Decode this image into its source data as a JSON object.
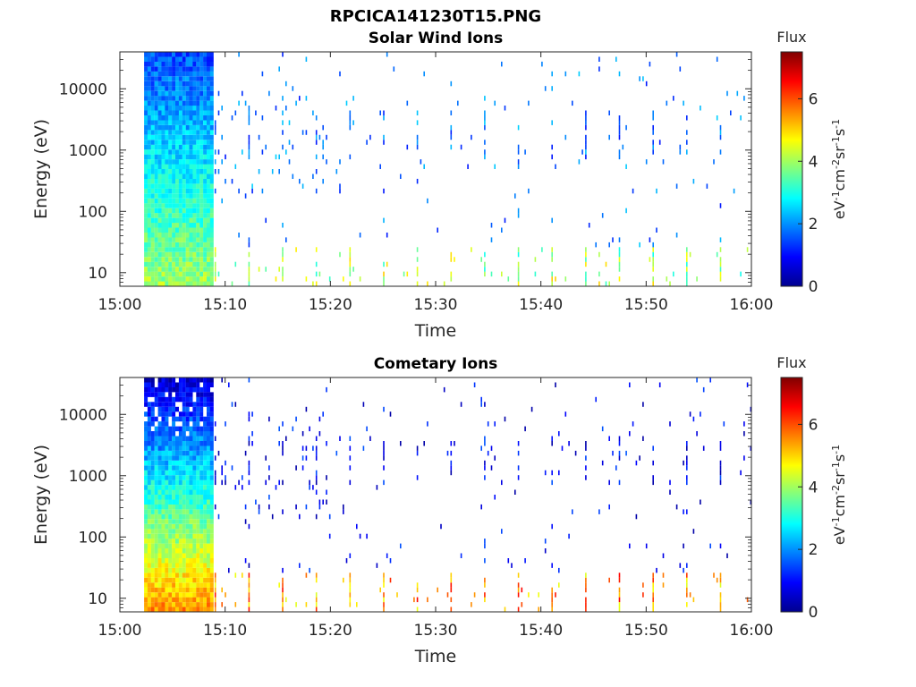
{
  "chart_data": {
    "title": "RPCICA141230T15.PNG",
    "colormap": "jet",
    "panels": [
      {
        "title": "Solar Wind Ions",
        "type": "heatmap",
        "xlabel": "Time",
        "ylabel": "Energy (eV)",
        "x_ticks": [
          "15:00",
          "15:10",
          "15:20",
          "15:30",
          "15:40",
          "15:50",
          "16:00"
        ],
        "x_range_minutes": [
          0,
          60
        ],
        "y_scale": "log",
        "y_ticks": [
          "10",
          "100",
          "1000",
          "10000"
        ],
        "y_range": [
          6,
          40000
        ],
        "colorbar": {
          "title": "Flux",
          "label": "eV-1cm-2sr-1s-1",
          "range": [
            0,
            7.5
          ],
          "ticks": [
            "0",
            "2",
            "4",
            "6"
          ]
        },
        "data_coverage_minutes": [
          2.3,
          60
        ],
        "dense_block_minutes": [
          2.3,
          8.8
        ],
        "typical_flux_low_energy": 4,
        "typical_flux_high_energy": 1.5
      },
      {
        "title": "Cometary Ions",
        "type": "heatmap",
        "xlabel": "Time",
        "ylabel": "Energy (eV)",
        "x_ticks": [
          "15:00",
          "15:10",
          "15:20",
          "15:30",
          "15:40",
          "15:50",
          "16:00"
        ],
        "x_range_minutes": [
          0,
          60
        ],
        "y_scale": "log",
        "y_ticks": [
          "10",
          "100",
          "1000",
          "10000"
        ],
        "y_range": [
          6,
          40000
        ],
        "colorbar": {
          "title": "Flux",
          "label": "eV-1cm-2sr-1s-1",
          "range": [
            0,
            7.5
          ],
          "ticks": [
            "0",
            "2",
            "4",
            "6"
          ]
        },
        "data_coverage_minutes": [
          2.3,
          60
        ],
        "dense_block_minutes": [
          2.3,
          8.8
        ],
        "typical_flux_low_energy": 5.5,
        "typical_flux_high_energy": 0.6
      }
    ]
  }
}
